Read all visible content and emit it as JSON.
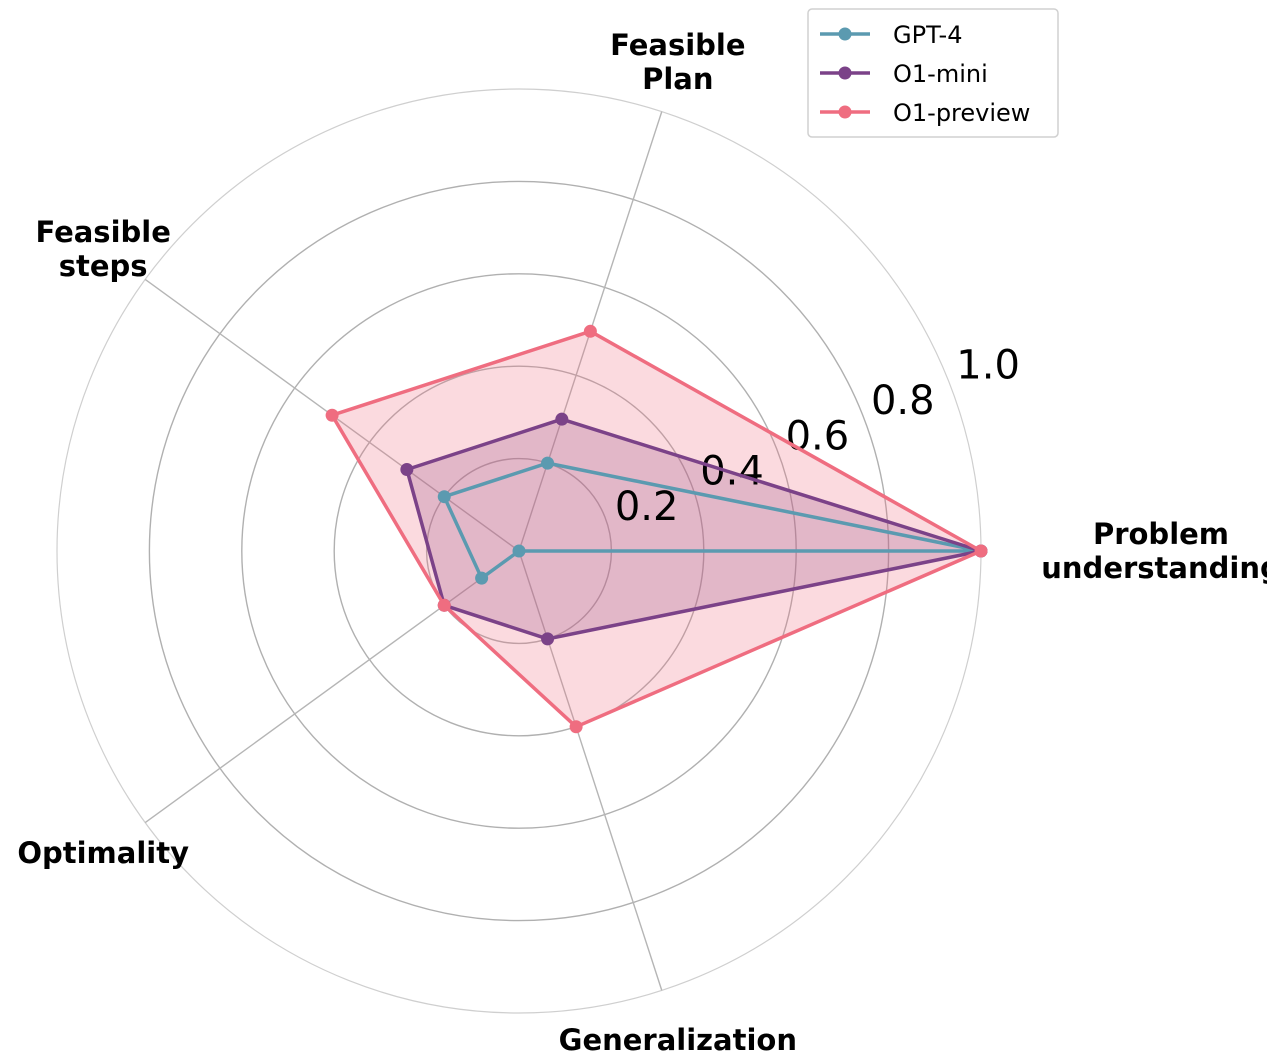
{
  "chart_data": {
    "type": "radar",
    "categories": [
      [
        "Problem",
        "understanding"
      ],
      [
        "Feasible",
        "Plan"
      ],
      [
        "Feasible",
        "steps"
      ],
      [
        "Optimality"
      ],
      [
        "Generalization"
      ]
    ],
    "radial_ticks": [
      "0.2",
      "0.4",
      "0.6",
      "0.8",
      "1.0"
    ],
    "rlim": [
      0,
      1.0
    ],
    "grid": true,
    "legend_position": "top-right",
    "series": [
      {
        "name": "GPT-4",
        "color": "#5b9ab0",
        "fill": false,
        "values": [
          1.0,
          0.2,
          0.2,
          0.1,
          0.0
        ]
      },
      {
        "name": "O1-mini",
        "color": "#7b4288",
        "fill": true,
        "values": [
          1.0,
          0.3,
          0.3,
          0.2,
          0.2
        ]
      },
      {
        "name": "O1-preview",
        "color": "#ef6d80",
        "fill": true,
        "values": [
          1.0,
          0.5,
          0.5,
          0.2,
          0.4
        ]
      }
    ]
  }
}
